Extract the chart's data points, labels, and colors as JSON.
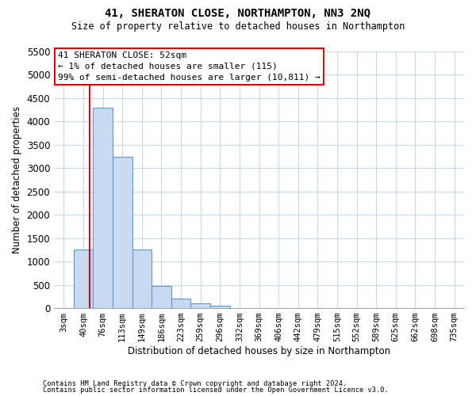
{
  "title": "41, SHERATON CLOSE, NORTHAMPTON, NN3 2NQ",
  "subtitle": "Size of property relative to detached houses in Northampton",
  "xlabel": "Distribution of detached houses by size in Northampton",
  "ylabel": "Number of detached properties",
  "footer1": "Contains HM Land Registry data © Crown copyright and database right 2024.",
  "footer2": "Contains public sector information licensed under the Open Government Licence v3.0.",
  "bar_labels": [
    "3sqm",
    "40sqm",
    "76sqm",
    "113sqm",
    "149sqm",
    "186sqm",
    "223sqm",
    "259sqm",
    "296sqm",
    "332sqm",
    "369sqm",
    "406sqm",
    "442sqm",
    "479sqm",
    "515sqm",
    "552sqm",
    "589sqm",
    "625sqm",
    "662sqm",
    "698sqm",
    "735sqm"
  ],
  "bar_values": [
    0,
    1250,
    4300,
    3250,
    1260,
    480,
    200,
    100,
    60,
    0,
    0,
    0,
    0,
    0,
    0,
    0,
    0,
    0,
    0,
    0,
    0
  ],
  "bar_color": "#c9daf0",
  "bar_edge_color": "#5b9bd5",
  "ylim": [
    0,
    5500
  ],
  "yticks": [
    0,
    500,
    1000,
    1500,
    2000,
    2500,
    3000,
    3500,
    4000,
    4500,
    5000,
    5500
  ],
  "property_line_color": "#cc0000",
  "annotation_line1": "41 SHERATON CLOSE: 52sqm",
  "annotation_line2": "← 1% of detached houses are smaller (115)",
  "annotation_line3": "99% of semi-detached houses are larger (10,811) →",
  "annotation_box_color": "#cc0000",
  "bg_color": "#ffffff",
  "grid_color": "#c8d8e8"
}
